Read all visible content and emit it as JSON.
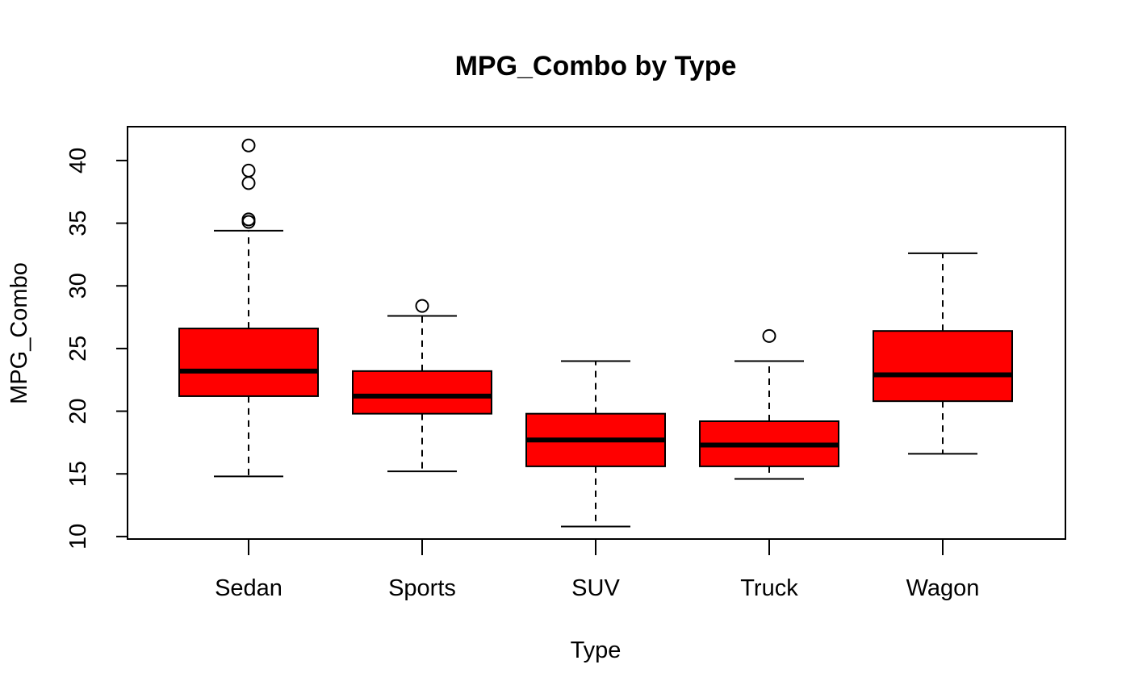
{
  "chart_data": {
    "type": "box",
    "title": "MPG_Combo by Type",
    "xlabel": "Type",
    "ylabel": "MPG_Combo",
    "categories": [
      "Sedan",
      "Sports",
      "SUV",
      "Truck",
      "Wagon"
    ],
    "ylim": [
      9.8,
      42.7
    ],
    "yticks": [
      10,
      15,
      20,
      25,
      30,
      35,
      40
    ],
    "box_color": "#FF0000",
    "line_color": "#000000",
    "grid": false,
    "boxes": [
      {
        "category": "Sedan",
        "whisker_low": 14.8,
        "q1": 21.2,
        "median": 23.2,
        "q3": 26.6,
        "whisker_high": 34.4,
        "outliers": [
          35.1,
          35.3,
          38.2,
          39.2,
          41.2
        ]
      },
      {
        "category": "Sports",
        "whisker_low": 15.2,
        "q1": 19.8,
        "median": 21.2,
        "q3": 23.2,
        "whisker_high": 27.6,
        "outliers": [
          28.4
        ]
      },
      {
        "category": "SUV",
        "whisker_low": 10.8,
        "q1": 15.6,
        "median": 17.7,
        "q3": 19.8,
        "whisker_high": 24.0,
        "outliers": []
      },
      {
        "category": "Truck",
        "whisker_low": 14.6,
        "q1": 15.6,
        "median": 17.3,
        "q3": 19.2,
        "whisker_high": 24.0,
        "outliers": [
          26.0
        ]
      },
      {
        "category": "Wagon",
        "whisker_low": 16.6,
        "q1": 20.8,
        "median": 22.9,
        "q3": 26.4,
        "whisker_high": 32.6,
        "outliers": []
      }
    ]
  }
}
